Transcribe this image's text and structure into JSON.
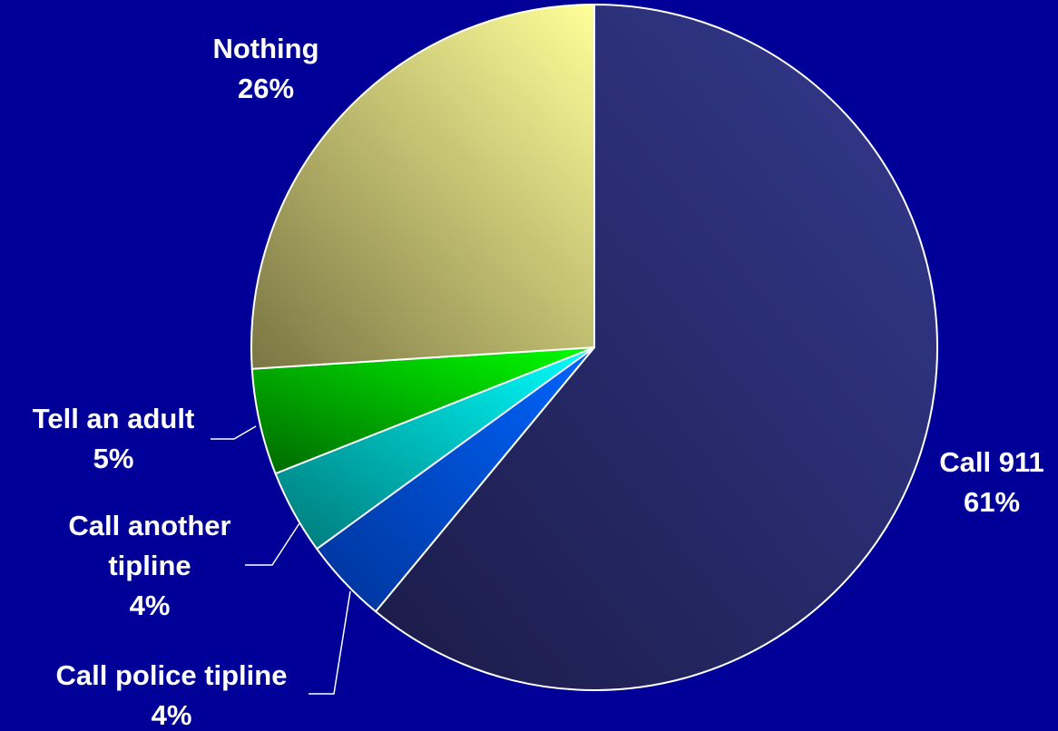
{
  "chart_data": {
    "type": "pie",
    "title": "",
    "slices": [
      {
        "label_lines": [
          "Call 911"
        ],
        "label": "Call 911",
        "value": 61,
        "value_label": "61%",
        "color_top": "#343a8f",
        "color_bottom": "#1b1b48"
      },
      {
        "label_lines": [
          "Call police tipline"
        ],
        "label": "Call police tipline",
        "value": 4,
        "value_label": "4%",
        "color_top": "#0066ff",
        "color_bottom": "#003399"
      },
      {
        "label_lines": [
          "Call another",
          "tipline"
        ],
        "label": "Call another tipline",
        "value": 4,
        "value_label": "4%",
        "color_top": "#00ffff",
        "color_bottom": "#007777"
      },
      {
        "label_lines": [
          "Tell an adult"
        ],
        "label": "Tell an adult",
        "value": 5,
        "value_label": "5%",
        "color_top": "#00ff00",
        "color_bottom": "#006600"
      },
      {
        "label_lines": [
          "Nothing"
        ],
        "label": "Nothing",
        "value": 26,
        "value_label": "26%",
        "color_top": "#ffff99",
        "color_bottom": "#7a7544"
      }
    ],
    "start_angle": "12 o'clock",
    "direction": "clockwise",
    "legend": "none",
    "colors": {
      "background": "#000099",
      "slice_border": "#ffffff",
      "label_text": "#ffffff"
    }
  }
}
